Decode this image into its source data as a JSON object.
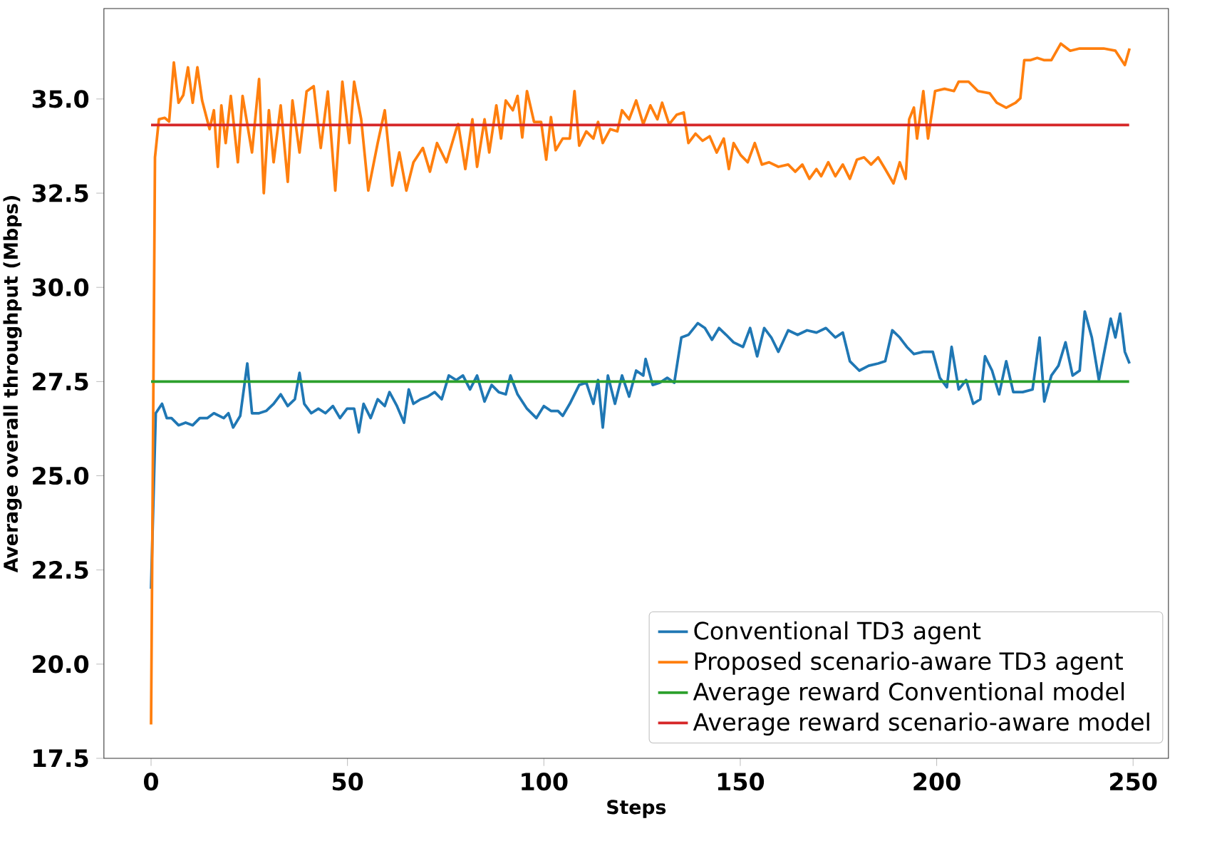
{
  "chart_data": {
    "type": "line",
    "xlabel": "Steps",
    "ylabel": "Average overall throughput (Mbps)",
    "xlim": [
      -12,
      259
    ],
    "ylim": [
      17.5,
      37.4
    ],
    "xticks": [
      0,
      50,
      100,
      150,
      200,
      250
    ],
    "yticks": [
      {
        "value": 17.5,
        "label": "17.5"
      },
      {
        "value": 20,
        "label": "20.0"
      },
      {
        "value": 22.5,
        "label": "22.5"
      },
      {
        "value": 25,
        "label": "25.0"
      },
      {
        "value": 27.5,
        "label": "27.5"
      },
      {
        "value": 30,
        "label": "30.0"
      },
      {
        "value": 32.5,
        "label": "32.5"
      },
      {
        "value": 35,
        "label": "35.0"
      }
    ],
    "legend": "bottom right",
    "grid": false,
    "line_style": "solid",
    "series": [
      {
        "name": "Conventional TD3 agent",
        "color": "#1f77b4",
        "x": [
          0,
          1.2,
          2.8,
          4,
          5.2,
          7,
          8.8,
          10.6,
          12.4,
          14.3,
          16,
          18.5,
          19.7,
          20.9,
          22.7,
          24.5,
          25.7,
          27.5,
          29.3,
          31.2,
          33,
          34.8,
          36.6,
          37.8,
          39,
          40.8,
          42.6,
          44.4,
          46.3,
          48.1,
          49.9,
          51.7,
          52.9,
          54.1,
          55.9,
          57.7,
          59.5,
          60.7,
          62.6,
          64.4,
          65.6,
          66.8,
          68.6,
          70.4,
          72.2,
          74,
          75.8,
          77.7,
          79.4,
          81.2,
          83,
          84.9,
          86.7,
          88.5,
          90.3,
          91.5,
          93.3,
          95.7,
          98.1,
          100,
          101.8,
          103.6,
          104.8,
          106.6,
          109,
          110.8,
          112.6,
          113.8,
          115,
          116.3,
          118.1,
          119.9,
          121.7,
          123.5,
          125.3,
          125.9,
          127.7,
          129.5,
          131.4,
          133.2,
          135,
          136.8,
          139.2,
          141,
          142.8,
          144.6,
          146.4,
          148.3,
          150.7,
          152.5,
          154.3,
          156.1,
          157.9,
          159.7,
          162.2,
          164.6,
          167,
          169.4,
          171.8,
          174.2,
          176.1,
          177.9,
          180.3,
          182.7,
          185.1,
          186.9,
          188.7,
          190.6,
          192.4,
          194.2,
          196.6,
          199,
          200.8,
          202.6,
          203.8,
          205.6,
          207.5,
          209.3,
          211.1,
          212.3,
          214.1,
          215.9,
          217.7,
          219.5,
          221.9,
          224.4,
          226.2,
          227.4,
          229.2,
          231,
          232.8,
          234.6,
          236.4,
          237.7,
          239.5,
          241.3,
          244.3,
          245.5,
          246.7,
          247.9,
          249.1
        ],
        "values": [
          22.0,
          26.66,
          26.91,
          26.53,
          26.53,
          26.34,
          26.41,
          26.34,
          26.53,
          26.53,
          26.66,
          26.53,
          26.66,
          26.28,
          26.59,
          27.98,
          26.66,
          26.66,
          26.72,
          26.91,
          27.16,
          26.85,
          27.03,
          27.73,
          26.91,
          26.66,
          26.78,
          26.66,
          26.85,
          26.53,
          26.78,
          26.78,
          26.15,
          26.91,
          26.53,
          27.03,
          26.85,
          27.22,
          26.85,
          26.41,
          27.29,
          26.91,
          27.03,
          27.1,
          27.22,
          27.03,
          27.66,
          27.54,
          27.66,
          27.29,
          27.66,
          26.97,
          27.41,
          27.22,
          27.16,
          27.66,
          27.16,
          26.78,
          26.53,
          26.85,
          26.72,
          26.72,
          26.59,
          26.91,
          27.41,
          27.47,
          26.91,
          27.54,
          26.28,
          27.66,
          26.91,
          27.66,
          27.1,
          27.79,
          27.66,
          28.1,
          27.41,
          27.47,
          27.6,
          27.47,
          28.67,
          28.74,
          29.05,
          28.92,
          28.61,
          28.92,
          28.74,
          28.54,
          28.42,
          28.92,
          28.17,
          28.92,
          28.67,
          28.29,
          28.86,
          28.74,
          28.86,
          28.8,
          28.92,
          28.67,
          28.8,
          28.04,
          27.79,
          27.92,
          27.98,
          28.04,
          28.86,
          28.67,
          28.42,
          28.23,
          28.29,
          28.29,
          27.6,
          27.35,
          28.42,
          27.29,
          27.54,
          26.91,
          27.03,
          28.17,
          27.79,
          27.16,
          28.04,
          27.22,
          27.22,
          27.29,
          28.67,
          26.97,
          27.66,
          27.92,
          28.54,
          27.66,
          27.79,
          29.36,
          28.67,
          27.54,
          29.17,
          28.67,
          29.3,
          28.29,
          27.98
        ]
      },
      {
        "name": "Proposed scenario-aware TD3 agent",
        "color": "#ff7f0e",
        "x": [
          0,
          1,
          2,
          3.5,
          4.6,
          5.8,
          7,
          8.2,
          9.4,
          10.6,
          11.8,
          13,
          14.9,
          16,
          17,
          17.9,
          19,
          20.3,
          22.1,
          23.3,
          25.7,
          27.5,
          28.7,
          30,
          31.2,
          33,
          34.8,
          36,
          37.8,
          39.6,
          41.4,
          43.2,
          45,
          46.9,
          48.7,
          50.5,
          51.7,
          53.5,
          55.3,
          57.7,
          59.5,
          61.4,
          63.2,
          65,
          66.8,
          69.2,
          71,
          72.8,
          75.2,
          77.7,
          78.2,
          80,
          81.8,
          83,
          84.9,
          86.1,
          87.9,
          89.1,
          90.3,
          92.1,
          93.3,
          94.5,
          95.7,
          97.5,
          99.3,
          100.6,
          101.8,
          103,
          104.8,
          106.6,
          107.8,
          109,
          110.8,
          112.6,
          113.8,
          115,
          116.9,
          118.7,
          119.9,
          121.7,
          123.5,
          125.3,
          127.1,
          128.9,
          130.1,
          131.9,
          133.8,
          135.6,
          136.8,
          138.6,
          140.4,
          142.2,
          144,
          145.8,
          147.1,
          148.3,
          150.1,
          151.9,
          153.7,
          155.5,
          157.3,
          159.7,
          162.2,
          164,
          165.8,
          167.6,
          169.4,
          170.6,
          172.4,
          174.2,
          176.1,
          177.9,
          179.7,
          181.5,
          183.3,
          185.1,
          186.9,
          189,
          190.6,
          192.1,
          193,
          194.2,
          195,
          196.6,
          197.8,
          199.6,
          202,
          204.4,
          205.6,
          208.1,
          210.5,
          213.5,
          215.3,
          217.7,
          220.1,
          221.3,
          222.3,
          223.8,
          225.6,
          227.4,
          229.2,
          231.6,
          234,
          236.4,
          239.5,
          242.5,
          245.5,
          247.9,
          249.1
        ],
        "values": [
          18.4,
          33.45,
          34.46,
          34.5,
          34.4,
          35.97,
          34.9,
          35.1,
          35.84,
          34.9,
          35.84,
          34.96,
          34.2,
          34.7,
          33.2,
          34.83,
          33.83,
          35.08,
          33.32,
          35.08,
          33.58,
          35.53,
          32.5,
          34.7,
          33.32,
          34.83,
          32.8,
          34.96,
          33.58,
          35.2,
          35.34,
          33.7,
          35.2,
          32.57,
          35.46,
          33.83,
          35.46,
          34.46,
          32.57,
          33.83,
          34.7,
          32.7,
          33.58,
          32.57,
          33.32,
          33.7,
          33.07,
          33.83,
          33.32,
          34.2,
          34.33,
          33.14,
          34.46,
          33.2,
          34.46,
          33.58,
          34.83,
          33.95,
          34.96,
          34.7,
          35.08,
          33.98,
          35.21,
          34.39,
          34.39,
          33.39,
          34.52,
          33.64,
          33.95,
          33.95,
          35.21,
          33.76,
          34.14,
          33.95,
          34.39,
          33.83,
          34.2,
          34.14,
          34.7,
          34.46,
          34.96,
          34.33,
          34.83,
          34.46,
          34.9,
          34.33,
          34.58,
          34.64,
          33.83,
          34.08,
          33.89,
          34.01,
          33.58,
          33.95,
          33.14,
          33.83,
          33.51,
          33.32,
          33.83,
          33.26,
          33.32,
          33.2,
          33.26,
          33.07,
          33.26,
          32.88,
          33.14,
          32.95,
          33.32,
          32.95,
          33.26,
          32.88,
          33.39,
          33.45,
          33.26,
          33.45,
          33.14,
          32.76,
          33.32,
          32.88,
          34.46,
          34.77,
          33.95,
          35.21,
          33.95,
          35.21,
          35.27,
          35.21,
          35.46,
          35.46,
          35.21,
          35.15,
          34.9,
          34.77,
          34.9,
          35.02,
          36.03,
          36.03,
          36.09,
          36.03,
          36.03,
          36.47,
          36.28,
          36.34,
          36.34,
          36.34,
          36.28,
          35.9,
          36.34
        ]
      },
      {
        "name": "Average reward Conventional model",
        "color": "#2ca02c",
        "x": [
          0,
          249
        ],
        "values": [
          27.5,
          27.5
        ]
      },
      {
        "name": "Average reward scenario-aware model",
        "color": "#d62728",
        "x": [
          0,
          249
        ],
        "values": [
          34.31,
          34.31
        ]
      }
    ]
  }
}
